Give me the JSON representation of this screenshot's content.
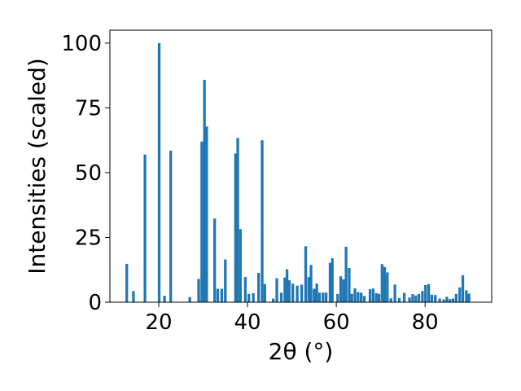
{
  "chart_data": {
    "type": "bar",
    "xlabel": "2θ (°)",
    "ylabel": "Intensities (scaled)",
    "xlim": [
      9,
      95
    ],
    "ylim": [
      0,
      105
    ],
    "x_ticks": [
      20,
      40,
      60,
      80
    ],
    "y_ticks": [
      0,
      25,
      50,
      75,
      100
    ],
    "bar_color": "#1f77b4",
    "bar_width": 0.6,
    "x": [
      12.8,
      14.3,
      16.9,
      20.1,
      21.3,
      22.7,
      27.0,
      29.0,
      29.7,
      30.3,
      30.8,
      32.6,
      33.3,
      34.2,
      35.0,
      37.3,
      37.8,
      38.4,
      39.5,
      40.3,
      41.3,
      42.5,
      43.3,
      43.9,
      45.8,
      46.6,
      47.6,
      48.4,
      48.9,
      49.4,
      50.2,
      51.2,
      52.2,
      53.1,
      53.8,
      54.3,
      55.0,
      55.6,
      56.2,
      57.0,
      57.7,
      58.6,
      59.1,
      60.3,
      61.0,
      61.6,
      62.2,
      62.9,
      63.5,
      64.2,
      64.9,
      65.6,
      66.3,
      67.6,
      68.3,
      69.0,
      69.6,
      70.3,
      70.9,
      71.5,
      72.3,
      73.2,
      74.2,
      75.3,
      76.5,
      77.2,
      77.9,
      78.6,
      79.4,
      80.1,
      80.8,
      81.5,
      82.3,
      83.3,
      84.2,
      84.9,
      85.6,
      86.3,
      87.0,
      87.8,
      88.5,
      89.3,
      89.9
    ],
    "values": [
      14.8,
      4.3,
      57.0,
      100.0,
      2.5,
      58.5,
      2.0,
      9.0,
      62.0,
      85.8,
      67.8,
      32.3,
      5.2,
      5.2,
      16.5,
      57.4,
      63.4,
      28.2,
      9.7,
      3.2,
      3.5,
      11.3,
      62.5,
      7.0,
      1.4,
      9.3,
      3.7,
      9.5,
      12.7,
      8.5,
      7.2,
      6.4,
      6.8,
      21.6,
      9.7,
      14.4,
      5.2,
      7.2,
      3.7,
      3.7,
      3.7,
      15.1,
      17.0,
      3.2,
      10.0,
      8.8,
      21.4,
      13.2,
      3.2,
      5.3,
      3.9,
      3.7,
      2.4,
      5.0,
      5.3,
      3.5,
      3.2,
      14.7,
      13.6,
      11.5,
      1.5,
      6.8,
      1.6,
      3.6,
      1.8,
      3.1,
      2.6,
      3.2,
      4.3,
      6.6,
      7.0,
      2.9,
      2.8,
      1.4,
      1.1,
      2.1,
      1.2,
      1.4,
      3.2,
      5.7,
      10.4,
      4.6,
      3.3
    ]
  }
}
